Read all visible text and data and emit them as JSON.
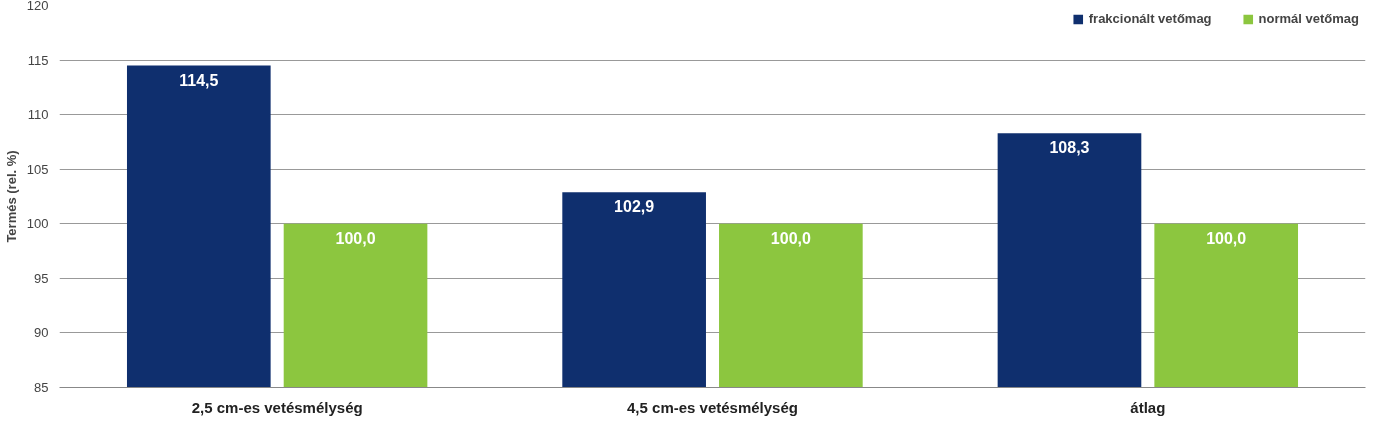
{
  "chart_data": {
    "type": "bar",
    "ylabel": "Termés (rel. %)",
    "categories": [
      "2,5 cm-es vetésmélység",
      "4,5 cm-es vetésmélység",
      "átlag"
    ],
    "series": [
      {
        "name": "frakcionált vetőmag",
        "color": "#0f2f6e",
        "values": [
          114.5,
          102.9,
          108.3
        ],
        "value_labels": [
          "114,5",
          "102,9",
          "108,3"
        ]
      },
      {
        "name": "normál vetőmag",
        "color": "#8cc63f",
        "values": [
          100.0,
          100.0,
          100.0
        ],
        "value_labels": [
          "100,0",
          "100,0",
          "100,0"
        ]
      }
    ],
    "ylim": [
      85,
      120
    ],
    "yticks": [
      85,
      90,
      95,
      100,
      105,
      110,
      115,
      120
    ],
    "grid": "y",
    "legend": "top right"
  }
}
